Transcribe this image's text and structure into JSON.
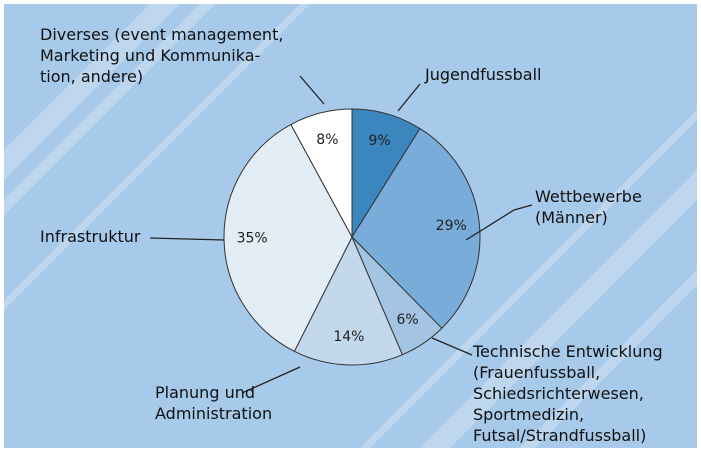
{
  "chart_data": {
    "type": "pie",
    "categories": [
      "Jugendfussball",
      "Wettbewerbe\n(Männer)",
      "Technische Entwicklung\n(Frauenfussball,\nSchiedsrichterwesen,\nSportmedizin,\nFutsal/Strandfussball)",
      "Planung und\nAdministration",
      "Infrastruktur",
      "Diverses (event management,\nMarketing und Kommunika-\ntion, andere)"
    ],
    "values": [
      9,
      29,
      6,
      14,
      35,
      8
    ],
    "value_labels": [
      "9%",
      "29%",
      "6%",
      "14%",
      "35%",
      "8%"
    ],
    "colors": [
      "#3b86bf",
      "#79acd9",
      "#a3c4e3",
      "#c3d8ec",
      "#e3edf6",
      "#ffffff"
    ]
  }
}
